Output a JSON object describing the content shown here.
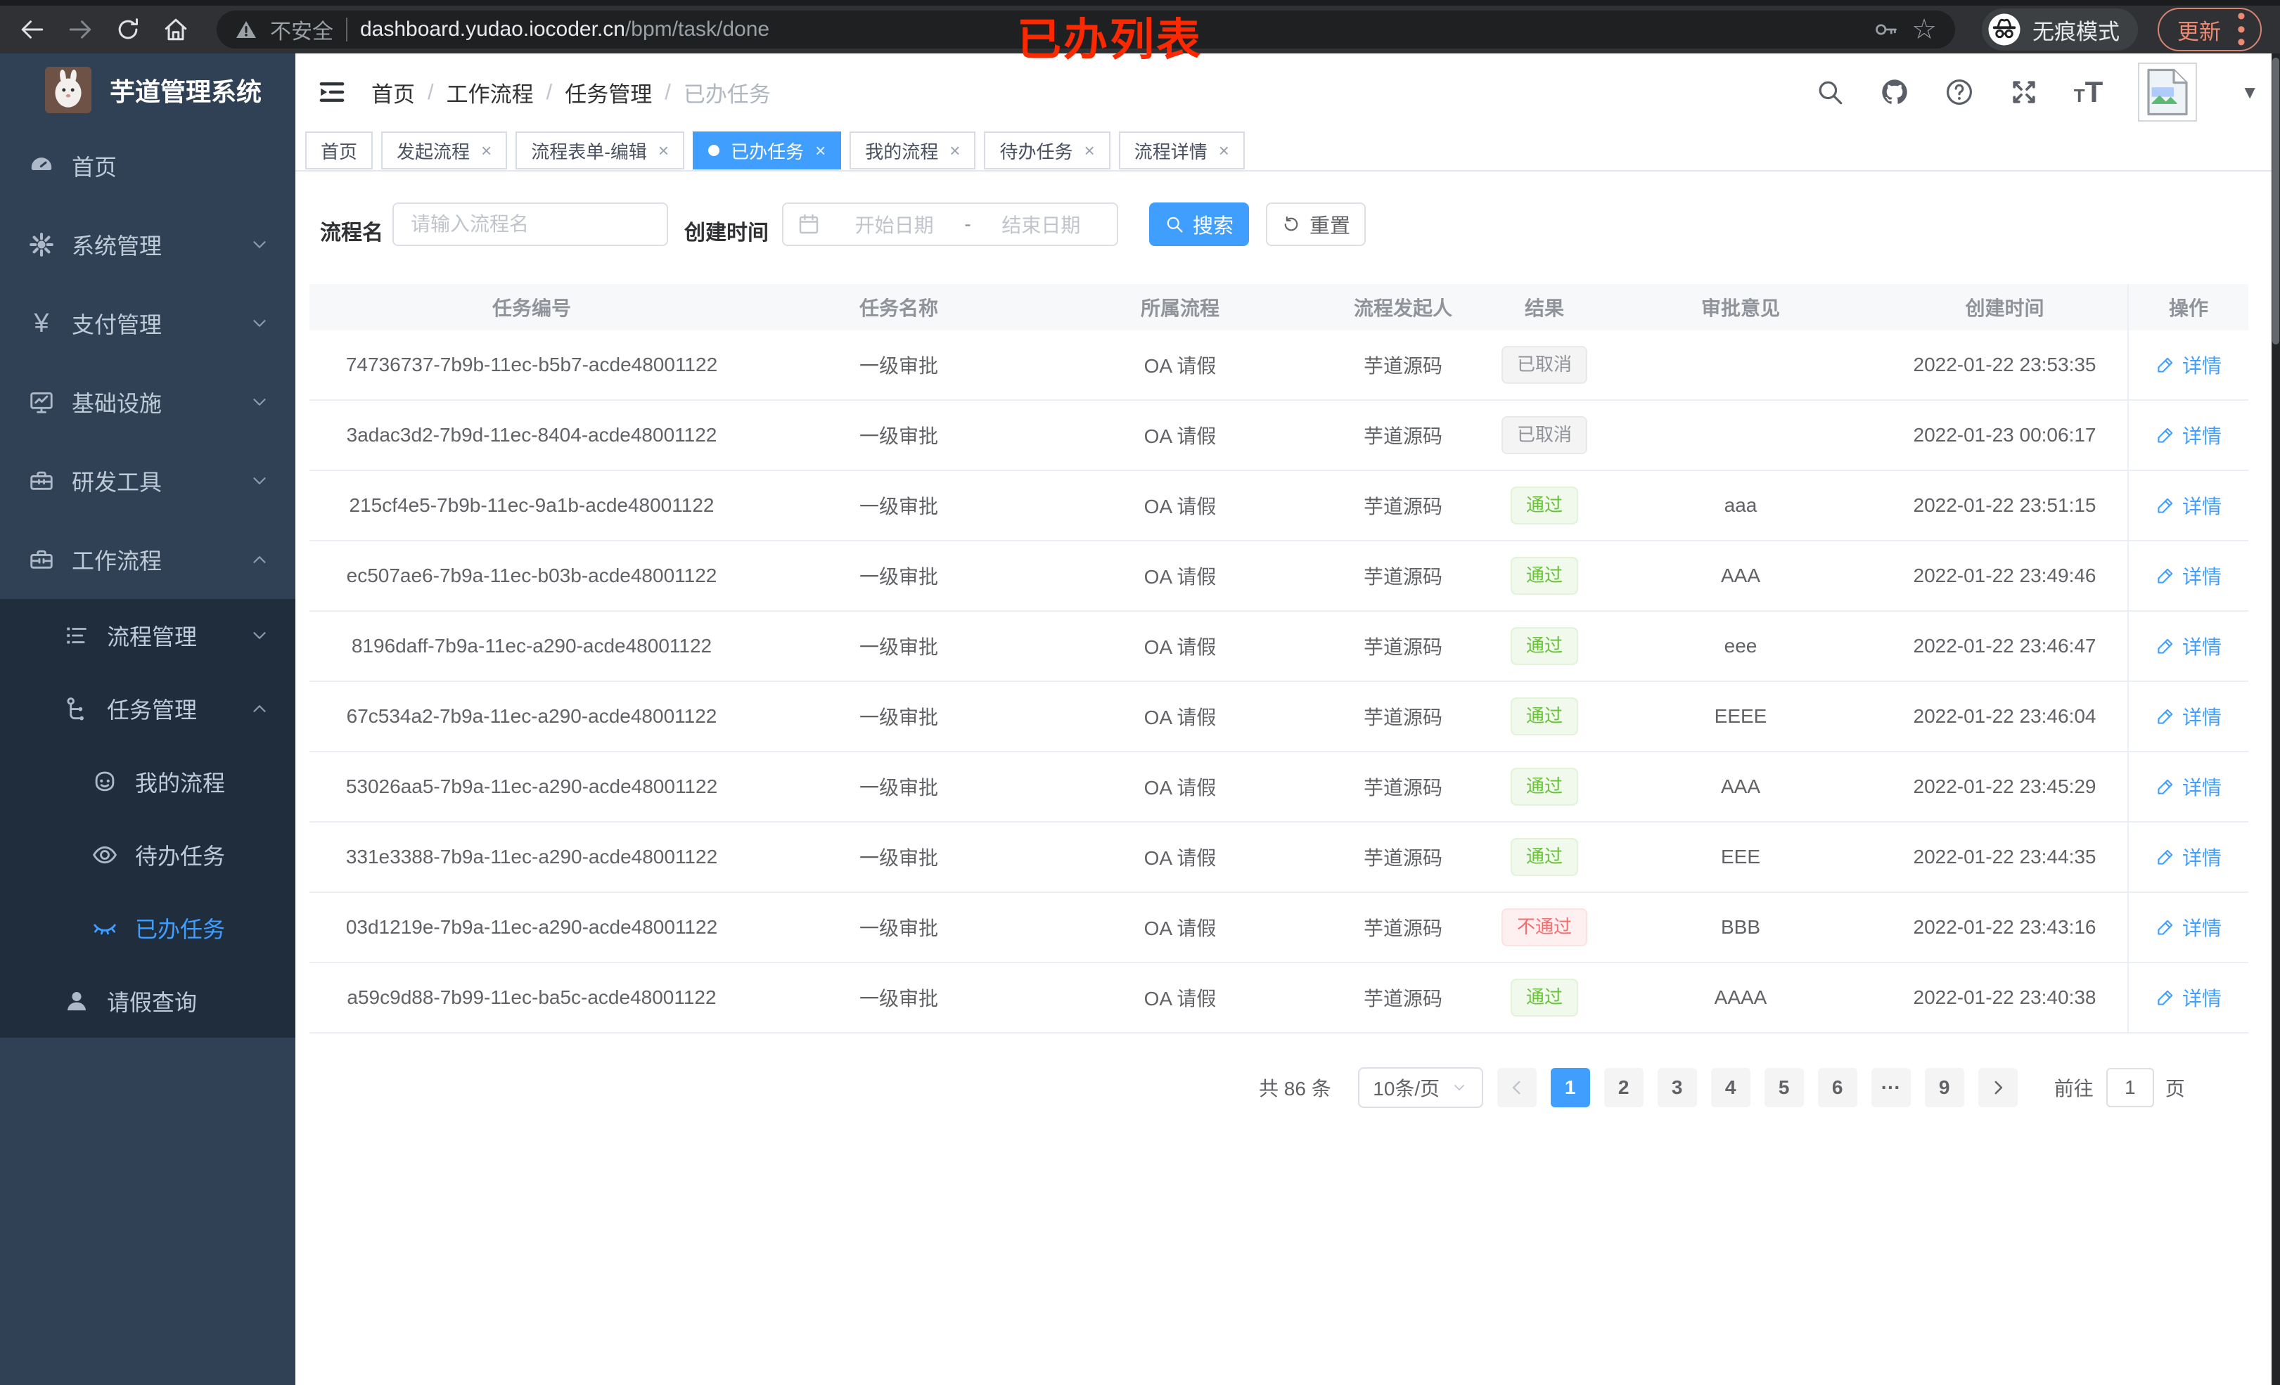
{
  "colors": {
    "primary": "#409eff",
    "success": "#67c23a",
    "success_bg": "#f0f9eb",
    "success_border": "#e1f3d8",
    "danger": "#f56c6c",
    "danger_bg": "#fef0f0",
    "danger_border": "#fde2e2",
    "info": "#909399",
    "info_bg": "#f4f4f5",
    "info_border": "#e9e9eb",
    "sidebar_bg": "#304156",
    "submenu_bg": "#1f2d3d",
    "annotation": "#fb2800"
  },
  "browser": {
    "security_label": "不安全",
    "url_host": "dashboard.yudao.iocoder.cn",
    "url_path": "/bpm/task/done",
    "incognito_label": "无痕模式",
    "update_label": "更新"
  },
  "annotation": {
    "text": "已办列表"
  },
  "sidebar": {
    "title": "芋道管理系统",
    "items": [
      {
        "label": "首页",
        "icon": "dashboard",
        "level": 1
      },
      {
        "label": "系统管理",
        "icon": "gear",
        "level": 1,
        "chevron": "down"
      },
      {
        "label": "支付管理",
        "icon": "yen",
        "level": 1,
        "chevron": "down"
      },
      {
        "label": "基础设施",
        "icon": "monitor",
        "level": 1,
        "chevron": "down"
      },
      {
        "label": "研发工具",
        "icon": "toolbox",
        "level": 1,
        "chevron": "down"
      },
      {
        "label": "工作流程",
        "icon": "briefcase",
        "level": 1,
        "chevron": "up"
      },
      {
        "label": "流程管理",
        "icon": "list",
        "level": 2,
        "sub": true,
        "chevron": "down"
      },
      {
        "label": "任务管理",
        "icon": "tree",
        "level": 2,
        "sub": true,
        "chevron": "up"
      },
      {
        "label": "我的流程",
        "icon": "robot",
        "level": 3,
        "sub": true
      },
      {
        "label": "待办任务",
        "icon": "eye",
        "level": 3,
        "sub": true
      },
      {
        "label": "已办任务",
        "icon": "eye-closed",
        "level": 3,
        "sub": true,
        "active": true
      },
      {
        "label": "请假查询",
        "icon": "user",
        "level": 2,
        "sub": true
      }
    ]
  },
  "navbar": {
    "breadcrumb": [
      "首页",
      "工作流程",
      "任务管理",
      "已办任务"
    ]
  },
  "tabs": [
    {
      "label": "首页"
    },
    {
      "label": "发起流程",
      "closable": true
    },
    {
      "label": "流程表单-编辑",
      "closable": true
    },
    {
      "label": "已办任务",
      "closable": true,
      "active": true
    },
    {
      "label": "我的流程",
      "closable": true
    },
    {
      "label": "待办任务",
      "closable": true
    },
    {
      "label": "流程详情",
      "closable": true
    }
  ],
  "filters": {
    "name_label": "流程名",
    "name_placeholder": "请输入流程名",
    "date_label": "创建时间",
    "date_start_placeholder": "开始日期",
    "date_separator": "-",
    "date_end_placeholder": "结束日期",
    "search_label": "搜索",
    "reset_label": "重置"
  },
  "table": {
    "columns": [
      "任务编号",
      "任务名称",
      "所属流程",
      "流程发起人",
      "结果",
      "审批意见",
      "创建时间",
      "操作"
    ],
    "action_label": "详情",
    "rows": [
      {
        "id": "74736737-7b9b-11ec-b5b7-acde48001122",
        "name": "一级审批",
        "process": "OA 请假",
        "starter": "芋道源码",
        "result": "已取消",
        "result_type": "info",
        "comment": "",
        "created": "2022-01-22 23:53:35"
      },
      {
        "id": "3adac3d2-7b9d-11ec-8404-acde48001122",
        "name": "一级审批",
        "process": "OA 请假",
        "starter": "芋道源码",
        "result": "已取消",
        "result_type": "info",
        "comment": "",
        "created": "2022-01-23 00:06:17"
      },
      {
        "id": "215cf4e5-7b9b-11ec-9a1b-acde48001122",
        "name": "一级审批",
        "process": "OA 请假",
        "starter": "芋道源码",
        "result": "通过",
        "result_type": "success",
        "comment": "aaa",
        "created": "2022-01-22 23:51:15"
      },
      {
        "id": "ec507ae6-7b9a-11ec-b03b-acde48001122",
        "name": "一级审批",
        "process": "OA 请假",
        "starter": "芋道源码",
        "result": "通过",
        "result_type": "success",
        "comment": "AAA",
        "created": "2022-01-22 23:49:46"
      },
      {
        "id": "8196daff-7b9a-11ec-a290-acde48001122",
        "name": "一级审批",
        "process": "OA 请假",
        "starter": "芋道源码",
        "result": "通过",
        "result_type": "success",
        "comment": "eee",
        "created": "2022-01-22 23:46:47"
      },
      {
        "id": "67c534a2-7b9a-11ec-a290-acde48001122",
        "name": "一级审批",
        "process": "OA 请假",
        "starter": "芋道源码",
        "result": "通过",
        "result_type": "success",
        "comment": "EEEE",
        "created": "2022-01-22 23:46:04"
      },
      {
        "id": "53026aa5-7b9a-11ec-a290-acde48001122",
        "name": "一级审批",
        "process": "OA 请假",
        "starter": "芋道源码",
        "result": "通过",
        "result_type": "success",
        "comment": "AAA",
        "created": "2022-01-22 23:45:29"
      },
      {
        "id": "331e3388-7b9a-11ec-a290-acde48001122",
        "name": "一级审批",
        "process": "OA 请假",
        "starter": "芋道源码",
        "result": "通过",
        "result_type": "success",
        "comment": "EEE",
        "created": "2022-01-22 23:44:35"
      },
      {
        "id": "03d1219e-7b9a-11ec-a290-acde48001122",
        "name": "一级审批",
        "process": "OA 请假",
        "starter": "芋道源码",
        "result": "不通过",
        "result_type": "danger",
        "comment": "BBB",
        "created": "2022-01-22 23:43:16"
      },
      {
        "id": "a59c9d88-7b99-11ec-ba5c-acde48001122",
        "name": "一级审批",
        "process": "OA 请假",
        "starter": "芋道源码",
        "result": "通过",
        "result_type": "success",
        "comment": "AAAA",
        "created": "2022-01-22 23:40:38"
      }
    ]
  },
  "pagination": {
    "total_label": "共 86 条",
    "page_size_label": "10条/页",
    "pages": [
      "1",
      "2",
      "3",
      "4",
      "5",
      "6",
      "···",
      "9"
    ],
    "active_page": "1",
    "goto_label": "前往",
    "goto_value": "1",
    "goto_suffix": "页"
  }
}
